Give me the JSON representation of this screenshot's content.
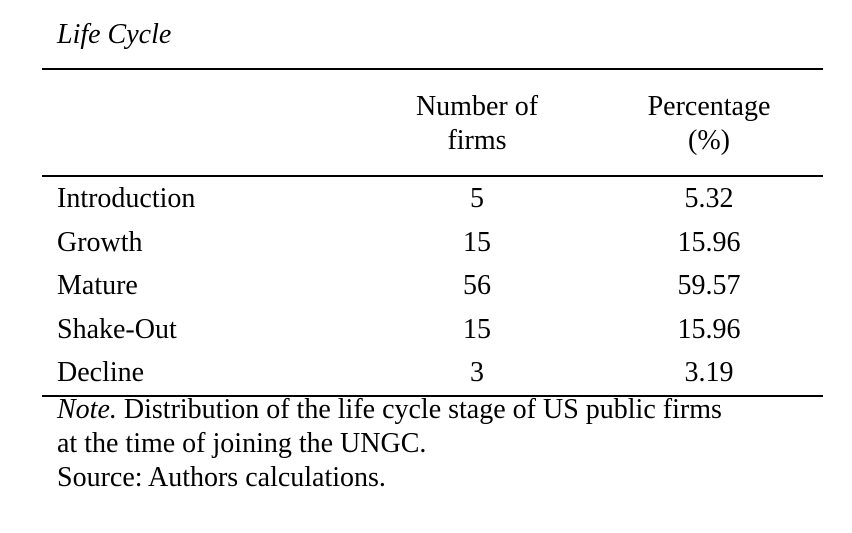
{
  "title": "Life Cycle",
  "table": {
    "header": {
      "stage_col": "",
      "firms_line1": "Number of",
      "firms_line2": "firms",
      "pct_line1": "Percentage",
      "pct_line2": "(%)"
    },
    "rows": [
      {
        "stage": "Introduction",
        "firms": "5",
        "percentage": "5.32"
      },
      {
        "stage": "Growth",
        "firms": "15",
        "percentage": "15.96"
      },
      {
        "stage": "Mature",
        "firms": "56",
        "percentage": "59.57"
      },
      {
        "stage": "Shake-Out",
        "firms": "15",
        "percentage": "15.96"
      },
      {
        "stage": "Decline",
        "firms": "3",
        "percentage": "3.19"
      }
    ]
  },
  "notes": {
    "note_label": "Note.",
    "note_line1_rest": " Distribution of the life cycle stage of US public firms",
    "note_line2": "at the time of joining the UNGC.",
    "source": "Source: Authors calculations."
  },
  "colors": {
    "text": "#000000",
    "background": "#ffffff",
    "rule": "#000000"
  }
}
